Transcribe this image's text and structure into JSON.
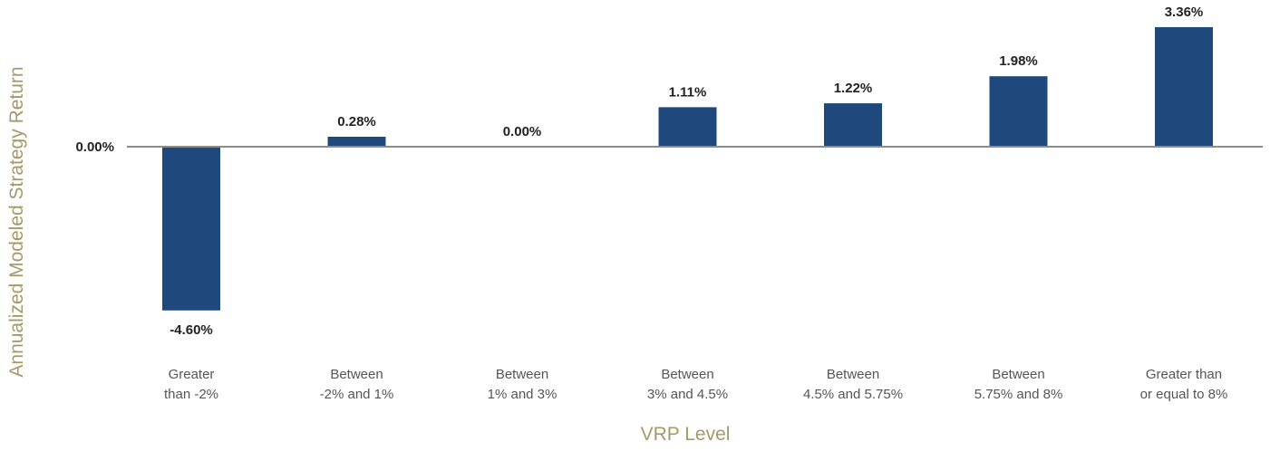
{
  "chart_data": {
    "type": "bar",
    "xlabel": "VRP Level",
    "ylabel": "Annualized Modeled Strategy Return",
    "categories": [
      [
        "Greater",
        "than -2%"
      ],
      [
        "Between",
        "-2% and 1%"
      ],
      [
        "Between",
        "1% and 3%"
      ],
      [
        "Between",
        "3% and 4.5%"
      ],
      [
        "Between",
        "4.5% and 5.75%"
      ],
      [
        "Between",
        "5.75% and 8%"
      ],
      [
        "Greater than",
        "or equal to 8%"
      ]
    ],
    "values": [
      -4.6,
      0.28,
      0.0,
      1.11,
      1.22,
      1.98,
      3.36
    ],
    "data_labels": [
      "-4.60%",
      "0.28%",
      "0.00%",
      "1.11%",
      "1.22%",
      "1.98%",
      "3.36%"
    ],
    "y_tick_labels": [
      "0.00%"
    ],
    "y_ticks": [
      0
    ],
    "ylim": [
      -5.2,
      3.6
    ],
    "grid": false,
    "legend": "none",
    "colors": {
      "bar": "#1f497d",
      "axis_title": "#a5996a",
      "zero_line": "#8c8c8c"
    }
  }
}
